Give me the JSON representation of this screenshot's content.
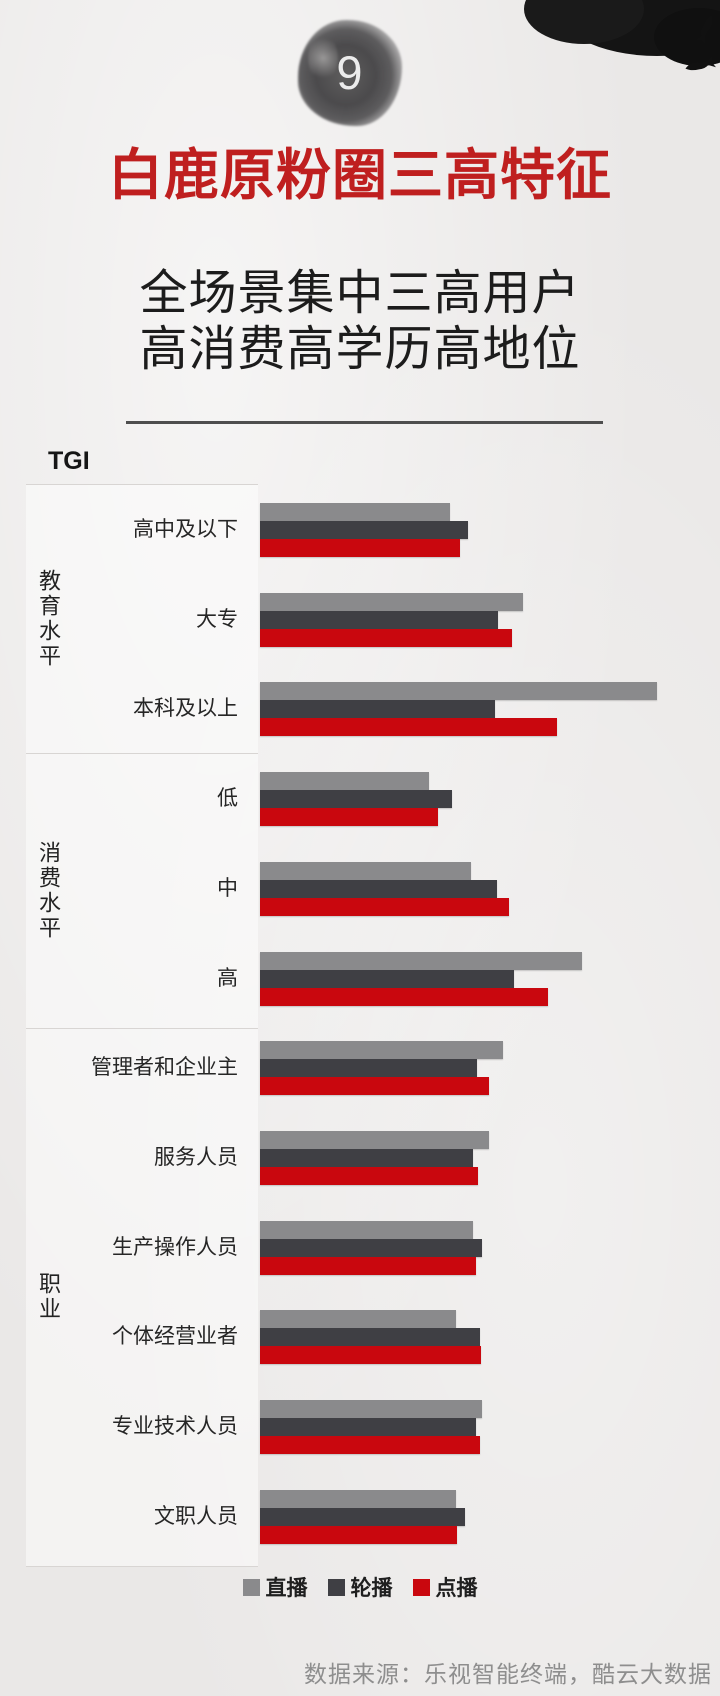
{
  "header": {
    "badge_number": "9",
    "title": "白鹿原粉圈三高特征",
    "subtitle_line1": "全场景集中三高用户",
    "subtitle_line2": "高消费高学历高地位"
  },
  "chart_data": {
    "type": "bar",
    "orientation": "horizontal",
    "axis_label": "TGI",
    "value_unit": "relative bar length in pixels (no numeric axis or data labels are shown in the image)",
    "grid": false,
    "legend_position": "bottom",
    "sections": [
      {
        "label": "教育水平",
        "categories": [
          "高中及以下",
          "大专",
          "本科及以上"
        ]
      },
      {
        "label": "消费水平",
        "categories": [
          "低",
          "中",
          "高"
        ]
      },
      {
        "label": "职业",
        "categories": [
          "管理者和企业主",
          "服务人员",
          "生产操作人员",
          "个体经营业者",
          "专业技术人员",
          "文职人员"
        ]
      }
    ],
    "categories": [
      "高中及以下",
      "大专",
      "本科及以上",
      "低",
      "中",
      "高",
      "管理者和企业主",
      "服务人员",
      "生产操作人员",
      "个体经营业者",
      "专业技术人员",
      "文职人员"
    ],
    "series": [
      {
        "name": "直播",
        "color": "#8a8a8c",
        "values": [
          190,
          263,
          397,
          169,
          211,
          322,
          243,
          229,
          213,
          196,
          222,
          196
        ]
      },
      {
        "name": "轮播",
        "color": "#3f3f44",
        "values": [
          208,
          238,
          235,
          192,
          237,
          254,
          217,
          213,
          222,
          220,
          216,
          205
        ]
      },
      {
        "name": "点播",
        "color": "#c9070e",
        "values": [
          200,
          252,
          297,
          178,
          249,
          288,
          229,
          218,
          216,
          221,
          220,
          197
        ]
      }
    ]
  },
  "footer": {
    "source": "数据来源：乐视智能终端，酷云大数据"
  },
  "colors": {
    "title_red": "#bf1f1f",
    "background": "#eae8e7",
    "bar_gray": "#8a8a8c",
    "bar_dark": "#3f3f44",
    "bar_red": "#c9070e",
    "ink_black": "#141414"
  }
}
